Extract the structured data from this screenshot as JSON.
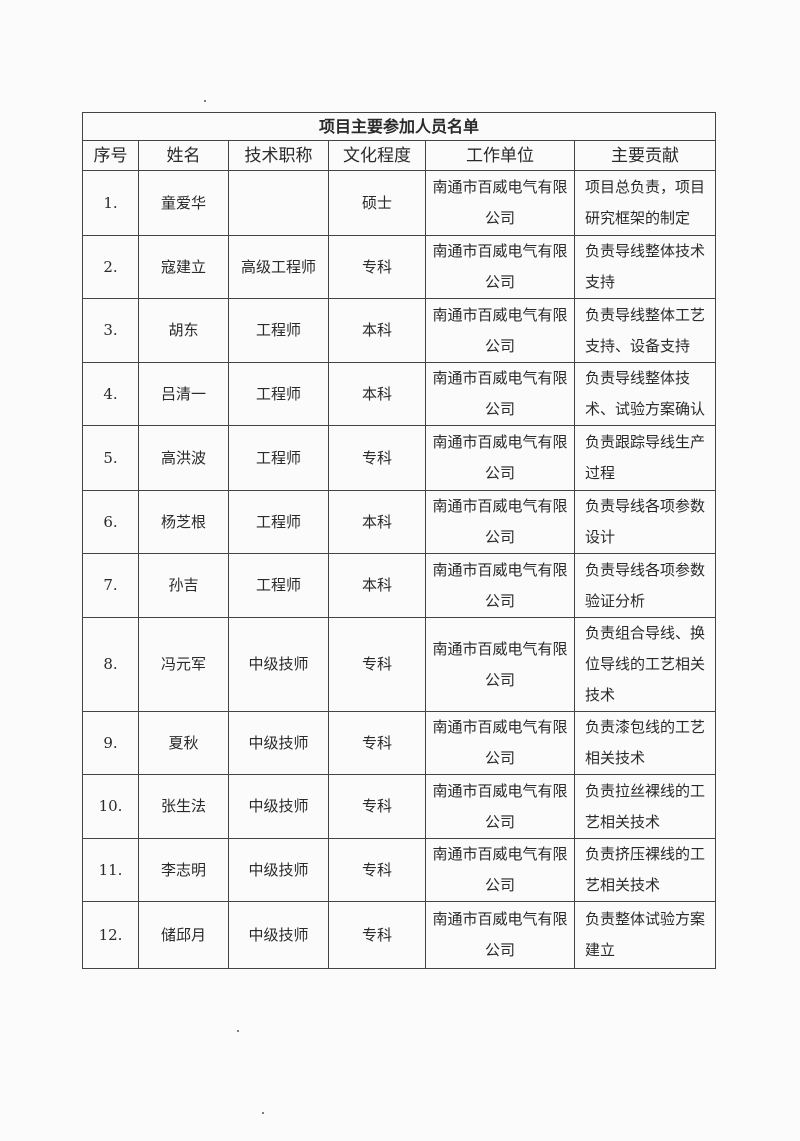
{
  "title": "项目主要参加人员名单",
  "headers": [
    "序号",
    "姓名",
    "技术职称",
    "文化程度",
    "工作单位",
    "主要贡献"
  ],
  "rows": [
    {
      "no": "1.",
      "name": "童爱华",
      "title": "",
      "education": "硕士",
      "unit": "南通市百威电气有限公司",
      "contribution": "项目总负责，项目研究框架的制定"
    },
    {
      "no": "2.",
      "name": "寇建立",
      "title": "高级工程师",
      "education": "专科",
      "unit": "南通市百威电气有限公司",
      "contribution": "负责导线整体技术支持"
    },
    {
      "no": "3.",
      "name": "胡东",
      "title": "工程师",
      "education": "本科",
      "unit": "南通市百威电气有限公司",
      "contribution": "负责导线整体工艺支持、设备支持"
    },
    {
      "no": "4.",
      "name": "吕清一",
      "title": "工程师",
      "education": "本科",
      "unit": "南通市百威电气有限公司",
      "contribution": "负责导线整体技术、试验方案确认"
    },
    {
      "no": "5.",
      "name": "高洪波",
      "title": "工程师",
      "education": "专科",
      "unit": "南通市百威电气有限公司",
      "contribution": "负责跟踪导线生产过程"
    },
    {
      "no": "6.",
      "name": "杨芝根",
      "title": "工程师",
      "education": "本科",
      "unit": "南通市百威电气有限公司",
      "contribution": "负责导线各项参数设计"
    },
    {
      "no": "7.",
      "name": "孙吉",
      "title": "工程师",
      "education": "本科",
      "unit": "南通市百威电气有限公司",
      "contribution": "负责导线各项参数验证分析"
    },
    {
      "no": "8.",
      "name": "冯元军",
      "title": "中级技师",
      "education": "专科",
      "unit": "南通市百威电气有限公司",
      "contribution": "负责组合导线、换位导线的工艺相关技术"
    },
    {
      "no": "9.",
      "name": "夏秋",
      "title": "中级技师",
      "education": "专科",
      "unit": "南通市百威电气有限公司",
      "contribution": "负责漆包线的工艺相关技术"
    },
    {
      "no": "10.",
      "name": "张生法",
      "title": "中级技师",
      "education": "专科",
      "unit": "南通市百威电气有限公司",
      "contribution": "负责拉丝裸线的工艺相关技术"
    },
    {
      "no": "11.",
      "name": "李志明",
      "title": "中级技师",
      "education": "专科",
      "unit": "南通市百威电气有限公司",
      "contribution": "负责挤压裸线的工艺相关技术"
    },
    {
      "no": "12.",
      "name": "储邱月",
      "title": "中级技师",
      "education": "专科",
      "unit": "南通市百威电气有限公司",
      "contribution": "负责整体试验方案建立"
    }
  ]
}
